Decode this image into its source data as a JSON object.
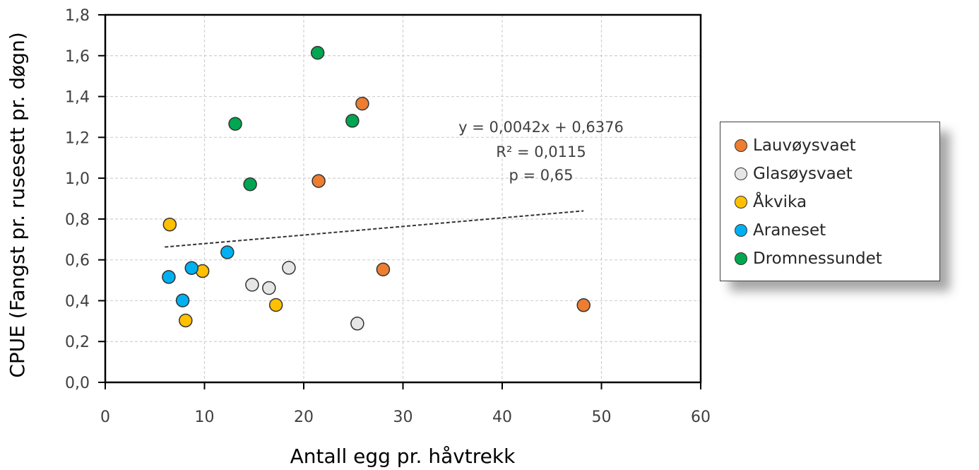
{
  "chart_data": {
    "type": "scatter",
    "title": "",
    "xlabel": "Antall egg pr. håvtrekk",
    "ylabel": "CPUE (Fangst pr. rusesett pr. døgn)",
    "xlim": [
      0,
      60
    ],
    "ylim": [
      0,
      1.8
    ],
    "xticks": [
      0,
      10,
      20,
      30,
      40,
      50,
      60
    ],
    "xtick_labels": [
      "0",
      "10",
      "20",
      "30",
      "40",
      "50",
      "60"
    ],
    "yticks": [
      0,
      0.2,
      0.4,
      0.6,
      0.8,
      1.0,
      1.2,
      1.4,
      1.6,
      1.8
    ],
    "ytick_labels": [
      "0,0",
      "0,2",
      "0,4",
      "0,6",
      "0,8",
      "1,0",
      "1,2",
      "1,4",
      "1,6",
      "1,8"
    ],
    "grid": true,
    "legend_position": "right",
    "series": [
      {
        "name": "Lauvøysvaet",
        "color": "#ED7D31",
        "x": [
          25.9,
          21.5,
          28.0,
          48.2
        ],
        "y": [
          1.365,
          0.986,
          0.553,
          0.378
        ]
      },
      {
        "name": "Glasøysvaet",
        "color": "#E7E6E6",
        "x": [
          18.5,
          14.8,
          16.5,
          25.4
        ],
        "y": [
          0.561,
          0.478,
          0.462,
          0.288
        ]
      },
      {
        "name": "Åkvika",
        "color": "#FFC000",
        "x": [
          6.5,
          9.8,
          8.1,
          17.2
        ],
        "y": [
          0.773,
          0.545,
          0.303,
          0.379
        ]
      },
      {
        "name": "Araneset",
        "color": "#00B0F0",
        "x": [
          12.3,
          8.7,
          6.4,
          7.8
        ],
        "y": [
          0.637,
          0.56,
          0.516,
          0.401
        ]
      },
      {
        "name": "Dromnessundet",
        "color": "#00A651",
        "x": [
          21.4,
          24.9,
          13.1,
          14.6
        ],
        "y": [
          1.614,
          1.281,
          1.266,
          0.97
        ]
      }
    ],
    "trendline": {
      "type": "linear",
      "slope": 0.0042,
      "intercept": 0.6376,
      "x_range": [
        6.0,
        48.2
      ],
      "style": "dashed"
    },
    "annotations": [
      "y = 0,0042x + 0,6376",
      "R² = 0,0115",
      "p = 0,65"
    ]
  }
}
